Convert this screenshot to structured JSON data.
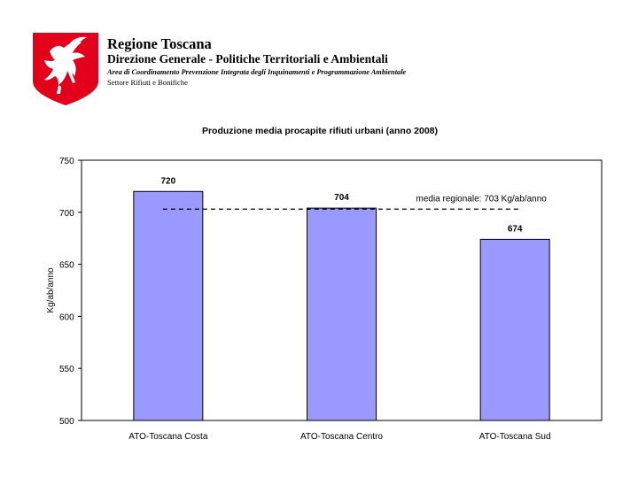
{
  "header": {
    "org_name": "Regione Toscana",
    "department": "Direzione Generale - Politiche Territoriali e Ambientali",
    "area": "Area di Coordinamento Prevenzione Integrata degli Inquinamenti e Programmazione Ambientale",
    "office": "Settore Rifiuti e Bonifiche",
    "logo_icon": "pegasus-logo-icon",
    "logo_color": "#e2001a"
  },
  "chart_data": {
    "type": "bar",
    "title": "Produzione media procapite rifiuti urbani (anno 2008)",
    "ylabel": "Kg/ab/anno",
    "xlabel": "",
    "categories": [
      "ATO-Toscana Costa",
      "ATO-Toscana Centro",
      "ATO-Toscana Sud"
    ],
    "values": [
      720,
      704,
      674
    ],
    "value_labels": [
      "720",
      "704",
      "674"
    ],
    "ylim": [
      500,
      750
    ],
    "yticks": [
      500,
      550,
      600,
      650,
      700,
      750
    ],
    "ytick_labels": [
      "500",
      "550",
      "600",
      "650",
      "700",
      "750"
    ],
    "bar_color": "#9999ff",
    "reference_line": {
      "value": 703,
      "label": "media regionale: 703 Kg/ab/anno",
      "style": "dashed"
    },
    "grid": false,
    "legend": "none"
  }
}
